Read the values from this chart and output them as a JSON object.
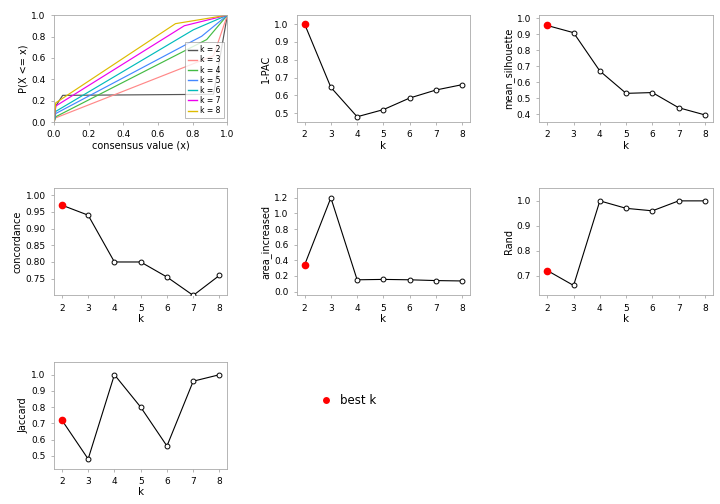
{
  "k_values": [
    2,
    3,
    4,
    5,
    6,
    7,
    8
  ],
  "one_pac": [
    1.0,
    0.645,
    0.48,
    0.52,
    0.585,
    0.63,
    0.66
  ],
  "mean_silhouette": [
    0.955,
    0.91,
    0.67,
    0.53,
    0.535,
    0.44,
    0.395
  ],
  "concordance": [
    0.97,
    0.94,
    0.8,
    0.8,
    0.755,
    0.7,
    0.76
  ],
  "area_increased": [
    0.34,
    1.2,
    0.15,
    0.155,
    0.15,
    0.14,
    0.135
  ],
  "rand": [
    0.72,
    0.66,
    1.0,
    0.97,
    0.96,
    1.0,
    1.0
  ],
  "jaccard": [
    0.72,
    0.48,
    1.0,
    0.8,
    0.56,
    0.96,
    1.0
  ],
  "best_k": 2,
  "cdf_colors": [
    "#555555",
    "#ff8888",
    "#44bb44",
    "#4488ff",
    "#00bbbb",
    "#ee00ee",
    "#ddbb00"
  ],
  "cdf_labels": [
    "k = 2",
    "k = 3",
    "k = 4",
    "k = 5",
    "k = 6",
    "k = 7",
    "k = 8"
  ],
  "bg_color": "#ffffff",
  "plot_bg": "#ffffff",
  "one_pac_ylim": [
    0.45,
    1.05
  ],
  "one_pac_yticks": [
    0.5,
    0.6,
    0.7,
    0.8,
    0.9,
    1.0
  ],
  "mean_sil_ylim": [
    0.35,
    1.02
  ],
  "mean_sil_yticks": [
    0.4,
    0.5,
    0.6,
    0.7,
    0.8,
    0.9,
    1.0
  ],
  "concordance_ylim": [
    0.7,
    1.02
  ],
  "concordance_yticks": [
    0.75,
    0.8,
    0.85,
    0.9,
    0.95,
    1.0
  ],
  "area_ylim": [
    -0.05,
    1.32
  ],
  "area_yticks": [
    0.0,
    0.2,
    0.4,
    0.6,
    0.8,
    1.0,
    1.2
  ],
  "rand_ylim": [
    0.62,
    1.05
  ],
  "rand_yticks": [
    0.7,
    0.8,
    0.9,
    1.0
  ],
  "jaccard_ylim": [
    0.42,
    1.08
  ],
  "jaccard_yticks": [
    0.5,
    0.6,
    0.7,
    0.8,
    0.9,
    1.0
  ]
}
